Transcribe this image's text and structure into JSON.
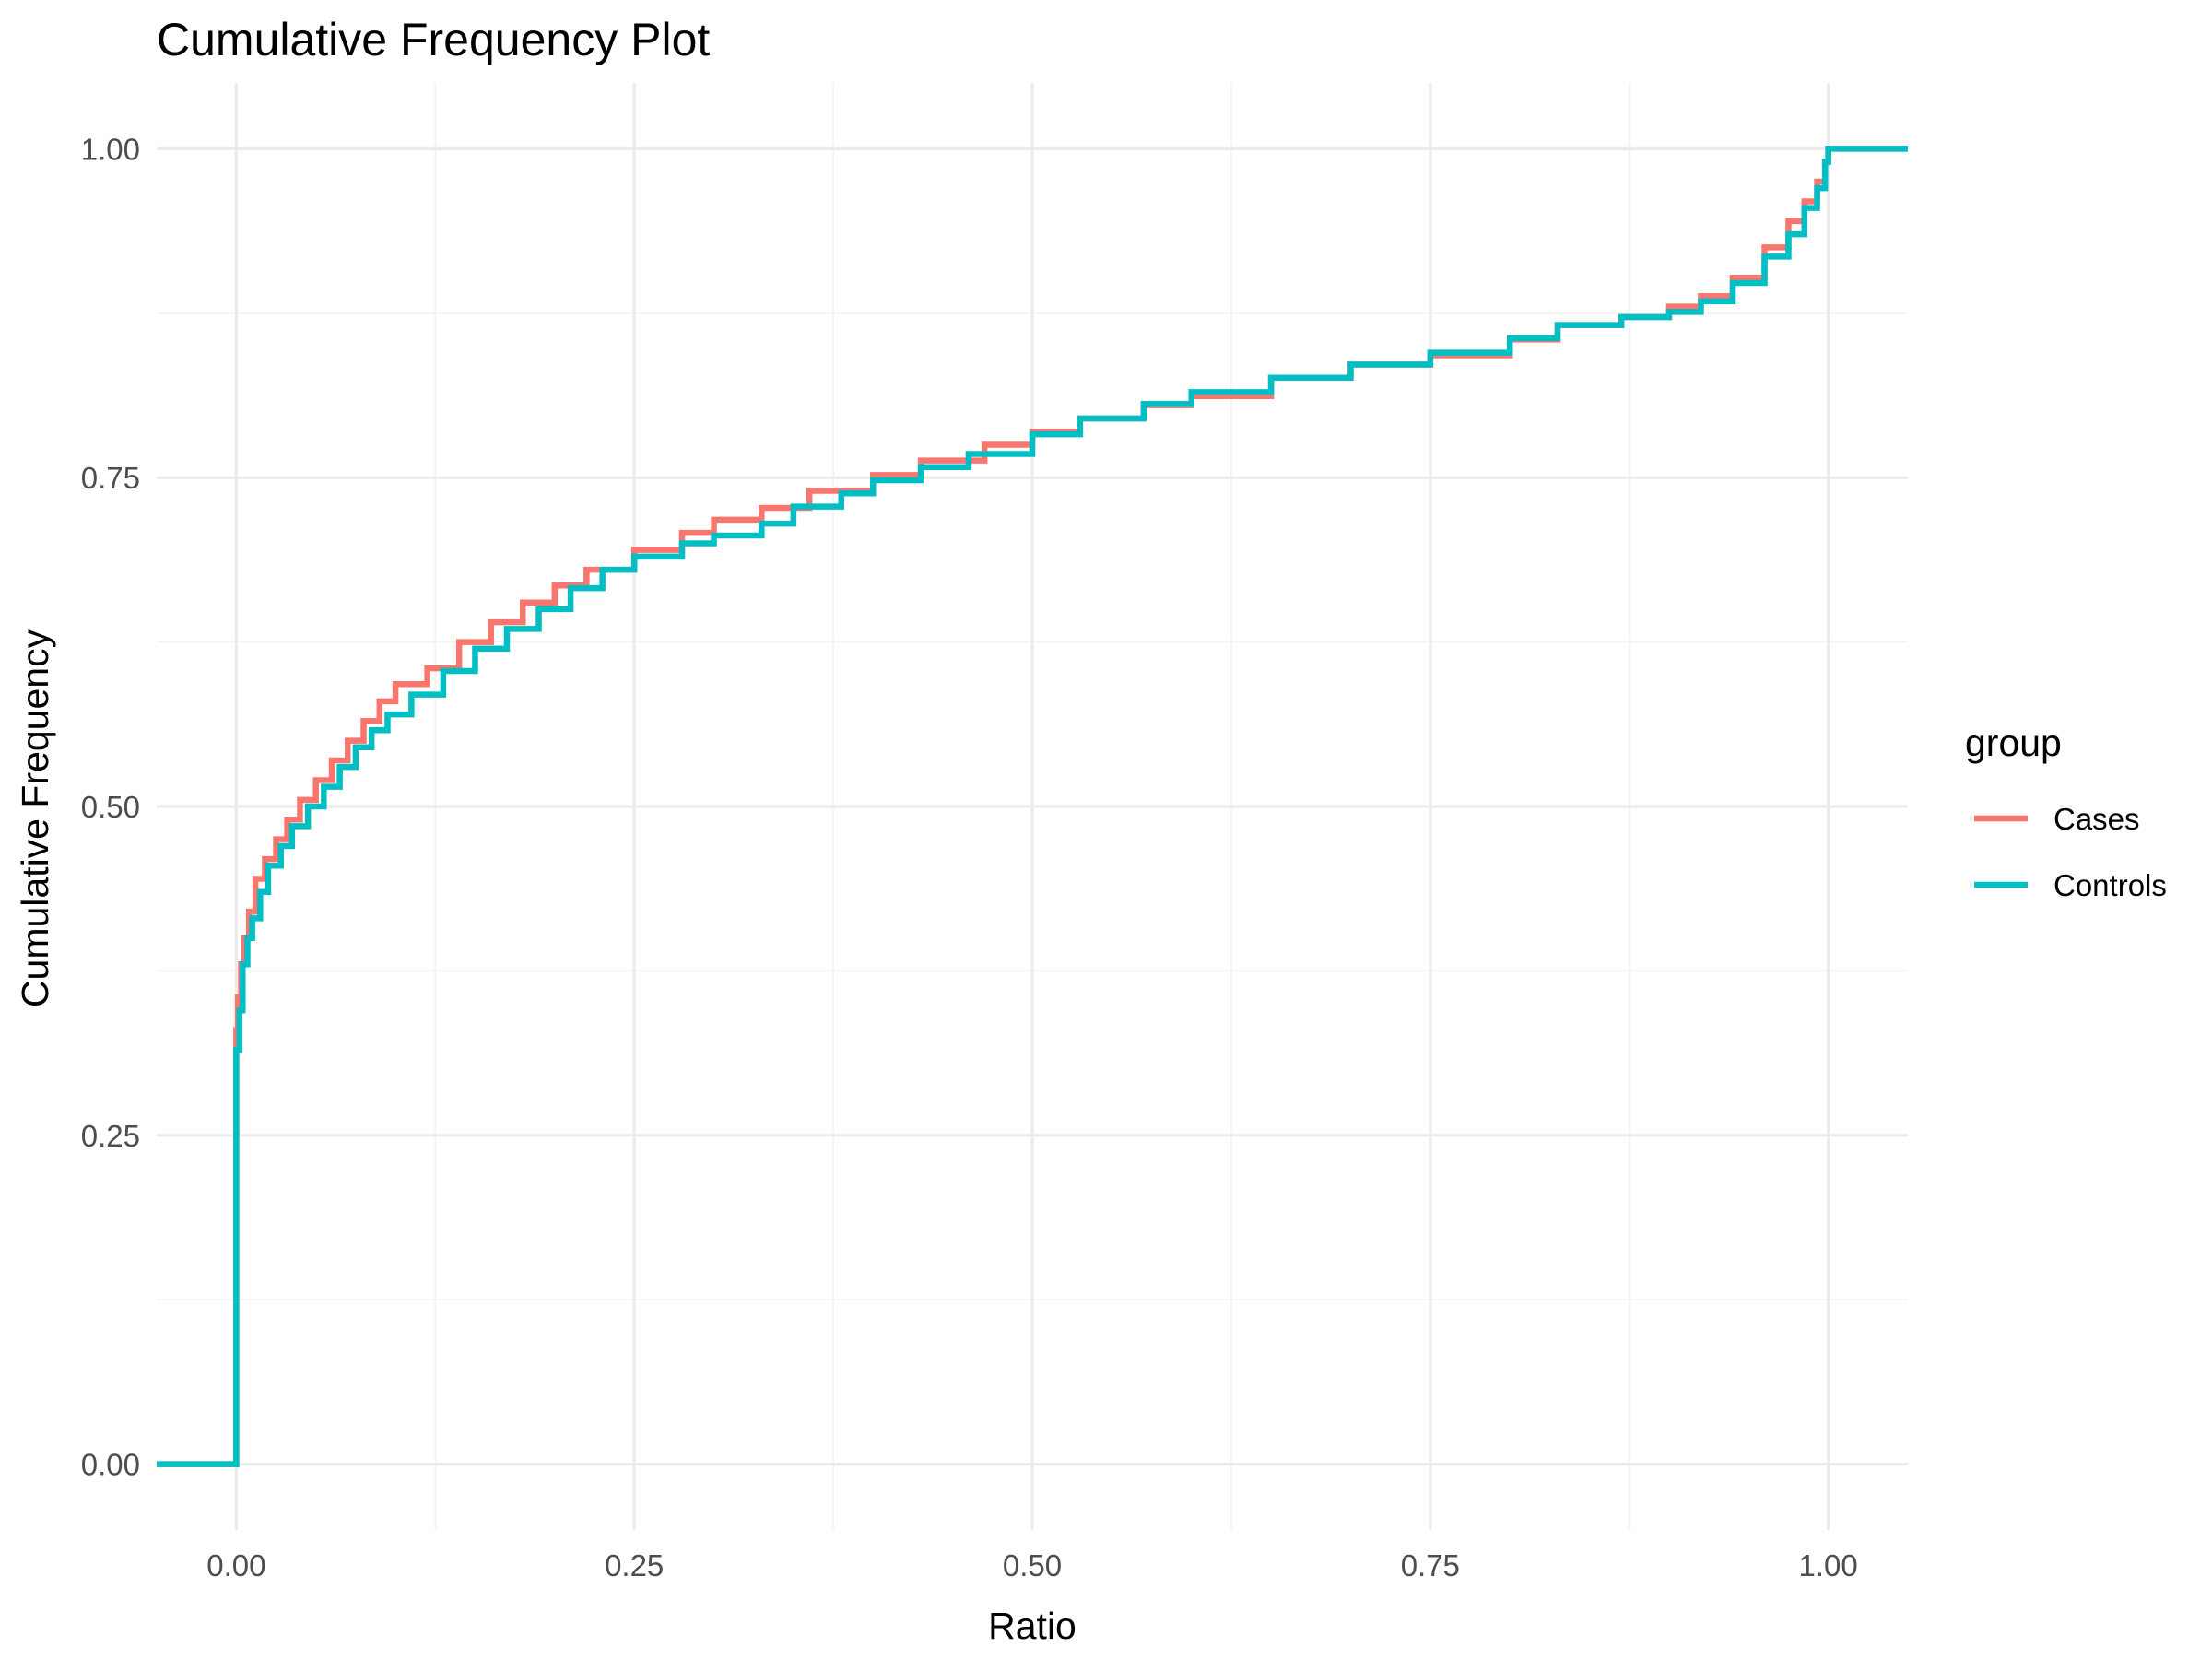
{
  "chart_data": {
    "type": "line",
    "step": true,
    "title": "Cumulative Frequency Plot",
    "xlabel": "Ratio",
    "ylabel": "Cumulative Frequency",
    "xlim": [
      -0.05,
      1.05
    ],
    "ylim": [
      -0.05,
      1.05
    ],
    "grid": true,
    "x_ticks": [
      {
        "value": 0.0,
        "label": "0.00"
      },
      {
        "value": 0.25,
        "label": "0.25"
      },
      {
        "value": 0.5,
        "label": "0.50"
      },
      {
        "value": 0.75,
        "label": "0.75"
      },
      {
        "value": 1.0,
        "label": "1.00"
      }
    ],
    "y_ticks": [
      {
        "value": 0.0,
        "label": "0.00"
      },
      {
        "value": 0.25,
        "label": "0.25"
      },
      {
        "value": 0.5,
        "label": "0.50"
      },
      {
        "value": 0.75,
        "label": "0.75"
      },
      {
        "value": 1.0,
        "label": "1.00"
      }
    ],
    "legend": {
      "title": "group",
      "position": "right"
    },
    "series": [
      {
        "name": "Cases",
        "color": "#F8766D",
        "points": [
          [
            -0.05,
            0.0
          ],
          [
            0.0,
            0.0
          ],
          [
            0.0,
            0.33
          ],
          [
            0.001,
            0.355
          ],
          [
            0.003,
            0.38
          ],
          [
            0.005,
            0.4
          ],
          [
            0.008,
            0.42
          ],
          [
            0.012,
            0.445
          ],
          [
            0.018,
            0.46
          ],
          [
            0.025,
            0.475
          ],
          [
            0.032,
            0.49
          ],
          [
            0.04,
            0.505
          ],
          [
            0.05,
            0.52
          ],
          [
            0.06,
            0.535
          ],
          [
            0.07,
            0.55
          ],
          [
            0.08,
            0.565
          ],
          [
            0.09,
            0.58
          ],
          [
            0.1,
            0.593
          ],
          [
            0.12,
            0.605
          ],
          [
            0.14,
            0.625
          ],
          [
            0.16,
            0.64
          ],
          [
            0.18,
            0.655
          ],
          [
            0.2,
            0.668
          ],
          [
            0.22,
            0.68
          ],
          [
            0.25,
            0.695
          ],
          [
            0.28,
            0.708
          ],
          [
            0.3,
            0.718
          ],
          [
            0.33,
            0.727
          ],
          [
            0.36,
            0.74
          ],
          [
            0.4,
            0.752
          ],
          [
            0.43,
            0.763
          ],
          [
            0.47,
            0.775
          ],
          [
            0.5,
            0.785
          ],
          [
            0.53,
            0.795
          ],
          [
            0.57,
            0.805
          ],
          [
            0.6,
            0.812
          ],
          [
            0.65,
            0.826
          ],
          [
            0.7,
            0.836
          ],
          [
            0.75,
            0.843
          ],
          [
            0.8,
            0.855
          ],
          [
            0.83,
            0.866
          ],
          [
            0.87,
            0.872
          ],
          [
            0.9,
            0.88
          ],
          [
            0.92,
            0.888
          ],
          [
            0.94,
            0.902
          ],
          [
            0.96,
            0.925
          ],
          [
            0.975,
            0.945
          ],
          [
            0.985,
            0.96
          ],
          [
            0.993,
            0.975
          ],
          [
            0.998,
            0.99
          ],
          [
            1.0,
            1.0
          ],
          [
            1.05,
            1.0
          ]
        ]
      },
      {
        "name": "Controls",
        "color": "#00BFC4",
        "points": [
          [
            -0.05,
            0.0
          ],
          [
            0.0,
            0.0
          ],
          [
            0.0,
            0.315
          ],
          [
            0.002,
            0.345
          ],
          [
            0.004,
            0.38
          ],
          [
            0.007,
            0.4
          ],
          [
            0.01,
            0.415
          ],
          [
            0.015,
            0.435
          ],
          [
            0.02,
            0.455
          ],
          [
            0.028,
            0.47
          ],
          [
            0.035,
            0.485
          ],
          [
            0.045,
            0.5
          ],
          [
            0.055,
            0.515
          ],
          [
            0.065,
            0.53
          ],
          [
            0.075,
            0.545
          ],
          [
            0.085,
            0.558
          ],
          [
            0.095,
            0.57
          ],
          [
            0.11,
            0.585
          ],
          [
            0.13,
            0.603
          ],
          [
            0.15,
            0.62
          ],
          [
            0.17,
            0.635
          ],
          [
            0.19,
            0.65
          ],
          [
            0.21,
            0.666
          ],
          [
            0.23,
            0.68
          ],
          [
            0.25,
            0.69
          ],
          [
            0.28,
            0.7
          ],
          [
            0.3,
            0.706
          ],
          [
            0.33,
            0.715
          ],
          [
            0.35,
            0.728
          ],
          [
            0.38,
            0.738
          ],
          [
            0.4,
            0.748
          ],
          [
            0.43,
            0.758
          ],
          [
            0.46,
            0.768
          ],
          [
            0.5,
            0.783
          ],
          [
            0.53,
            0.795
          ],
          [
            0.57,
            0.806
          ],
          [
            0.6,
            0.815
          ],
          [
            0.65,
            0.826
          ],
          [
            0.7,
            0.836
          ],
          [
            0.75,
            0.845
          ],
          [
            0.8,
            0.856
          ],
          [
            0.83,
            0.866
          ],
          [
            0.87,
            0.872
          ],
          [
            0.9,
            0.876
          ],
          [
            0.92,
            0.884
          ],
          [
            0.94,
            0.898
          ],
          [
            0.96,
            0.918
          ],
          [
            0.975,
            0.935
          ],
          [
            0.985,
            0.955
          ],
          [
            0.993,
            0.97
          ],
          [
            0.998,
            0.99
          ],
          [
            1.0,
            1.0
          ],
          [
            1.05,
            1.0
          ]
        ]
      }
    ]
  }
}
